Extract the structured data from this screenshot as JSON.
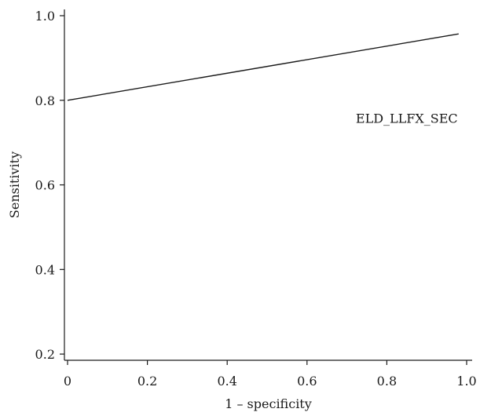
{
  "chart_data": {
    "type": "line",
    "title": "",
    "xlabel": "1 – specificity",
    "ylabel": "Sensitivity",
    "xlim": [
      0,
      1.0
    ],
    "ylim": [
      0.1,
      1.0
    ],
    "x_ticks": [
      0,
      0.2,
      0.4,
      0.6,
      0.8,
      1.0
    ],
    "x_tick_labels": [
      "0",
      "0.2",
      "0.4",
      "0.6",
      "0.8",
      "1.0"
    ],
    "y_ticks": [
      0.2,
      0.4,
      0.6,
      0.8,
      1.0
    ],
    "y_tick_labels": [
      "0.2",
      "0.4",
      "0.6",
      "0.8",
      "1.0"
    ],
    "grid": false,
    "series": [
      {
        "name": "ELD_LLFX_SEC",
        "x": [
          0,
          0.98
        ],
        "y": [
          0.8,
          0.957
        ]
      }
    ],
    "annotations": [
      {
        "text": "ELD_LLFX_SEC",
        "x": 0.85,
        "y": 0.747
      }
    ],
    "colors": {
      "line": "#1a1a1a",
      "axis": "#1a1a1a",
      "text": "#1a1a1a"
    }
  }
}
